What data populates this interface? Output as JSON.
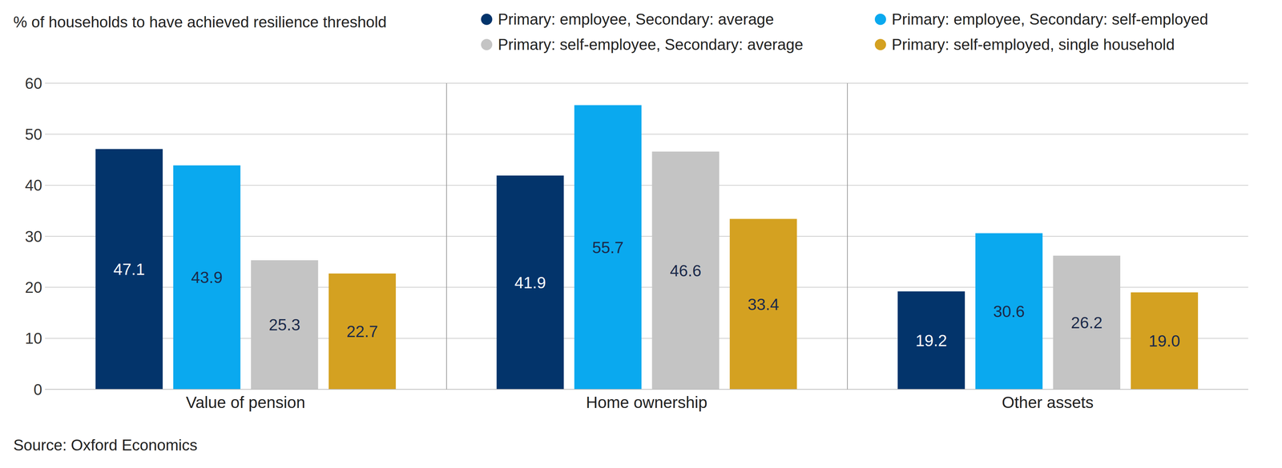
{
  "chart_data": {
    "type": "bar",
    "title": "% of households to have achieved resilience threshold",
    "source": "Source: Oxford Economics",
    "categories": [
      "Value of pension",
      "Home ownership",
      "Other assets"
    ],
    "series": [
      {
        "name": "Primary: employee, Secondary: average",
        "color": "#03346b",
        "values": [
          47.1,
          41.9,
          19.2
        ],
        "value_labels": [
          "47.1",
          "41.9",
          "19.2"
        ]
      },
      {
        "name": "Primary: employee, Secondary: self-employed",
        "color": "#0aa9ef",
        "values": [
          43.9,
          55.7,
          30.6
        ],
        "value_labels": [
          "43.9",
          "55.7",
          "30.6"
        ]
      },
      {
        "name": "Primary: self-employee, Secondary: average",
        "color": "#c4c4c4",
        "values": [
          25.3,
          46.6,
          26.2
        ],
        "value_labels": [
          "25.3",
          "46.6",
          "26.2"
        ]
      },
      {
        "name": "Primary: self-employed, single household",
        "color": "#d4a121",
        "values": [
          22.7,
          33.4,
          19.0
        ],
        "value_labels": [
          "22.7",
          "33.4",
          "19.0"
        ]
      }
    ],
    "ylim": [
      0,
      60
    ],
    "yticks": [
      0,
      10,
      20,
      30,
      40,
      50,
      60
    ],
    "grid": true,
    "legend": "top",
    "data_labels": true
  }
}
